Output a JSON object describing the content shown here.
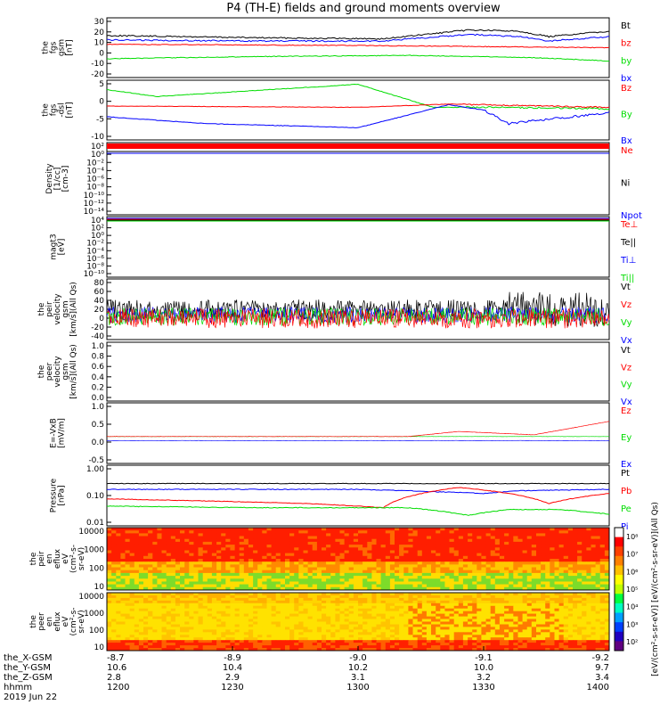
{
  "title": "P4 (TH-E) fields and ground moments overview",
  "colors": {
    "black": "#000000",
    "red": "#ff0000",
    "green": "#00dd00",
    "blue": "#0000ff"
  },
  "panels": [
    {
      "ylabel": [
        "the",
        "fgs",
        "gsm",
        "[nT]"
      ],
      "yticks": [
        "30",
        "20",
        "10",
        "0",
        "-10",
        "-20"
      ],
      "legend": [
        {
          "text": "Bt",
          "color": "black"
        },
        {
          "text": "bz",
          "color": "red"
        },
        {
          "text": "by",
          "color": "green"
        },
        {
          "text": "bx",
          "color": "blue"
        }
      ]
    },
    {
      "ylabel": [
        "the",
        "fgs",
        "-dsl",
        "[nT]"
      ],
      "yticks": [
        "5",
        "0",
        "-5",
        "-10"
      ],
      "legend": [
        {
          "text": "Bz",
          "color": "red"
        },
        {
          "text": "By",
          "color": "green"
        },
        {
          "text": "Bx",
          "color": "blue"
        }
      ]
    },
    {
      "ylabel": [
        "Density",
        "[1/cc]",
        "[cm-3]"
      ],
      "yticks": [
        "10²",
        "10⁰",
        "10⁻²",
        "10⁻⁴",
        "10⁻⁶",
        "10⁻⁸",
        "10⁻¹⁰",
        "10⁻¹²",
        "10⁻¹⁴"
      ],
      "legend": [
        {
          "text": "Ne",
          "color": "red"
        },
        {
          "text": "Ni",
          "color": "black"
        },
        {
          "text": "Npot",
          "color": "blue"
        }
      ]
    },
    {
      "ylabel": [
        "magt3",
        "[eV]"
      ],
      "yticks": [
        "10⁴",
        "10²",
        "10⁰",
        "10⁻²",
        "10⁻⁴",
        "10⁻⁶",
        "10⁻⁸",
        "10⁻¹⁰"
      ],
      "legend": [
        {
          "text": "Te⊥",
          "color": "red"
        },
        {
          "text": "Te||",
          "color": "black"
        },
        {
          "text": "Ti⊥",
          "color": "blue"
        },
        {
          "text": "Ti||",
          "color": "green"
        }
      ]
    },
    {
      "ylabel": [
        "the",
        "peir",
        "velocity",
        "gsm",
        "[km/s](All Qs)"
      ],
      "yticks": [
        "80",
        "60",
        "40",
        "20",
        "0",
        "-20",
        "-40"
      ],
      "legend": [
        {
          "text": "Vt",
          "color": "black"
        },
        {
          "text": "Vz",
          "color": "red"
        },
        {
          "text": "Vy",
          "color": "green"
        },
        {
          "text": "Vx",
          "color": "blue"
        }
      ]
    },
    {
      "ylabel": [
        "the",
        "peer",
        "velocity",
        "gsm",
        "[km/s](All Qs)"
      ],
      "yticks": [
        "1.0",
        "0.8",
        "0.6",
        "0.4",
        "0.2",
        "0.0"
      ],
      "legend": [
        {
          "text": "Vt",
          "color": "black"
        },
        {
          "text": "Vz",
          "color": "red"
        },
        {
          "text": "Vy",
          "color": "green"
        },
        {
          "text": "Vx",
          "color": "blue"
        }
      ]
    },
    {
      "ylabel": [
        "E=-VxB",
        "[mV/m]"
      ],
      "yticks": [
        "1.0",
        "0.5",
        "0.0",
        "-0.5"
      ],
      "legend": [
        {
          "text": "Ez",
          "color": "red"
        },
        {
          "text": "Ey",
          "color": "green"
        },
        {
          "text": "Ex",
          "color": "blue"
        }
      ]
    },
    {
      "ylabel": [
        "Pressure",
        "[nPa]"
      ],
      "yticks": [
        "1.00",
        "0.10",
        "0.01"
      ],
      "legend": [
        {
          "text": "Pt",
          "color": "black"
        },
        {
          "text": "Pb",
          "color": "red"
        },
        {
          "text": "Pe",
          "color": "green"
        },
        {
          "text": "Pi",
          "color": "blue"
        }
      ]
    },
    {
      "ylabel": [
        "the",
        "peir",
        "en",
        "eflux",
        "eV",
        "(cm²-s-",
        "sr-eV)"
      ],
      "yticks": [
        "10000",
        "1000",
        "100",
        "10"
      ],
      "legend": []
    },
    {
      "ylabel": [
        "the",
        "peer",
        "en",
        "eflux",
        "eV",
        "(cm²-s-",
        "sr-eV)"
      ],
      "yticks": [
        "10000",
        "1000",
        "100",
        "10"
      ],
      "legend": []
    }
  ],
  "colorbar": {
    "ticks": [
      "10⁸",
      "10⁷",
      "10⁶",
      "10⁵",
      "10⁴",
      "10³",
      "10²"
    ],
    "label": "[eV/(cm²-s-sr-eV)] [eV/(cm²-s-sr-eV)](All Qs)"
  },
  "xaxis": {
    "ticks": [
      {
        "label": "-8.7",
        "x": "10.6",
        "y": "2.8",
        "hhmm": "1200"
      },
      {
        "label": "-8.9",
        "x": "10.4",
        "y": "2.9",
        "hhmm": "1230"
      },
      {
        "label": "-9.0",
        "x": "10.2",
        "y": "3.1",
        "hhmm": "1300"
      },
      {
        "label": "-9.1",
        "x": "10.0",
        "y": "3.2",
        "hhmm": "1330"
      },
      {
        "label": "-9.2",
        "x": "9.7",
        "y": "3.4",
        "hhmm": "1400"
      }
    ],
    "row_labels": [
      "the_X-GSM",
      "the_Y-GSM",
      "the_Z-GSM",
      "hhmm"
    ],
    "date": "2019 Jun 22"
  },
  "chart_data": {
    "type": "line",
    "title": "P4 (TH-E) fields and ground moments overview",
    "x": [
      "1200",
      "1230",
      "1300",
      "1330",
      "1400"
    ],
    "series": [
      {
        "name": "Bt",
        "values": [
          16,
          14,
          13,
          21,
          19
        ],
        "ylim": [
          -20,
          30
        ]
      },
      {
        "name": "bz",
        "values": [
          8,
          7,
          6,
          5,
          5
        ],
        "ylim": [
          -20,
          30
        ]
      },
      {
        "name": "by",
        "values": [
          -5,
          -3,
          -2,
          -4,
          -7
        ],
        "ylim": [
          -20,
          30
        ]
      },
      {
        "name": "bx",
        "values": [
          12,
          11,
          11,
          17,
          14
        ],
        "ylim": [
          -20,
          30
        ]
      },
      {
        "name": "Bz",
        "values": [
          -0.5,
          -1,
          -1,
          0,
          -1
        ],
        "ylim": [
          -12,
          8
        ]
      },
      {
        "name": "By",
        "values": [
          5,
          5,
          7.5,
          -1,
          -1.5
        ],
        "ylim": [
          -12,
          8
        ]
      },
      {
        "name": "Bx",
        "values": [
          -4.5,
          -7,
          -8,
          0,
          -4
        ],
        "ylim": [
          -12,
          8
        ]
      },
      {
        "name": "Pt",
        "values": [
          0.28,
          0.27,
          0.27,
          0.3,
          0.3
        ],
        "ylim": [
          0.01,
          1.0
        ]
      },
      {
        "name": "Pb",
        "values": [
          0.075,
          0.06,
          0.04,
          0.22,
          0.12
        ],
        "ylim": [
          0.01,
          1.0
        ]
      },
      {
        "name": "Pe",
        "values": [
          0.04,
          0.035,
          0.035,
          0.02,
          0.02
        ],
        "ylim": [
          0.01,
          1.0
        ]
      },
      {
        "name": "Pi",
        "values": [
          0.17,
          0.16,
          0.17,
          0.13,
          0.17
        ],
        "ylim": [
          0.01,
          1.0
        ]
      }
    ]
  }
}
